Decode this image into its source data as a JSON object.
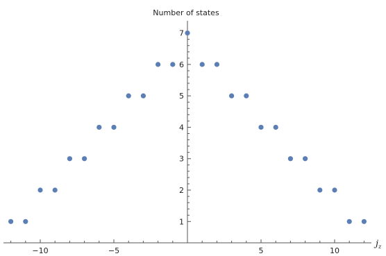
{
  "chart_data": {
    "type": "scatter",
    "title": "Number of states",
    "xlabel_main": "j",
    "xlabel_sub": "z",
    "xlim": [
      -12.5,
      12.5
    ],
    "ylim": [
      0.3,
      7.3
    ],
    "x_ticks": [
      -10,
      -5,
      5,
      10
    ],
    "x_tick_labels": [
      "−10",
      "−5",
      "5",
      "10"
    ],
    "y_ticks": [
      1,
      2,
      3,
      4,
      5,
      6,
      7
    ],
    "y_tick_labels": [
      "1",
      "2",
      "3",
      "4",
      "5",
      "6",
      "7"
    ],
    "grid": false,
    "point_color": "#5b7fb5",
    "axis_color": "#555555",
    "x": [
      -12,
      -11,
      -10,
      -9,
      -8,
      -7,
      -6,
      -5,
      -4,
      -3,
      -2,
      -1,
      0,
      1,
      2,
      3,
      4,
      5,
      6,
      7,
      8,
      9,
      10,
      11,
      12
    ],
    "y": [
      1,
      1,
      2,
      2,
      3,
      3,
      4,
      4,
      5,
      5,
      6,
      6,
      7,
      6,
      6,
      5,
      5,
      4,
      4,
      3,
      3,
      2,
      2,
      1,
      1
    ]
  }
}
